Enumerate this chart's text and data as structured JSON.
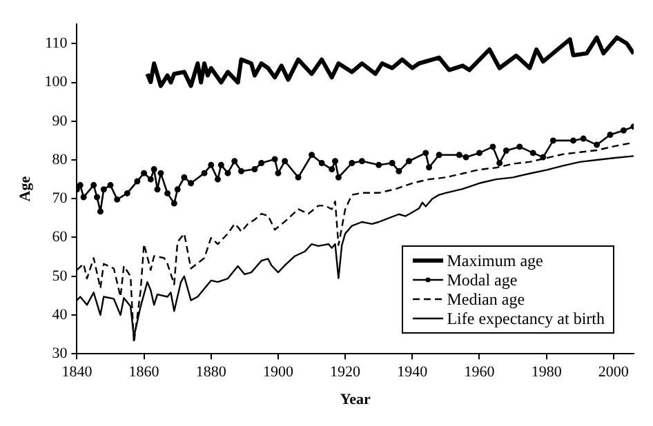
{
  "chart_data": {
    "type": "line",
    "xlabel": "Year",
    "ylabel": "Age",
    "xlim": [
      1840,
      2006
    ],
    "xticks": [
      1840,
      1860,
      1880,
      1900,
      1920,
      1940,
      1960,
      1980,
      2000
    ],
    "ylim": [
      30,
      115
    ],
    "yticks": [
      30,
      40,
      50,
      60,
      70,
      80,
      90,
      100,
      110
    ],
    "grid": false,
    "legend": "right",
    "series": [
      {
        "name": "Maximum age",
        "color": "#000000",
        "line_style": "solid",
        "marker": "none",
        "x": [
          1861,
          1862,
          1863,
          1865,
          1867,
          1868,
          1869,
          1872,
          1874,
          1876,
          1877,
          1878,
          1879,
          1880,
          1883,
          1885,
          1888,
          1889,
          1892,
          1893,
          1895,
          1897,
          1899,
          1901,
          1903,
          1906,
          1910,
          1913,
          1916,
          1918,
          1922,
          1925,
          1929,
          1931,
          1934,
          1937,
          1940,
          1942,
          1948,
          1951,
          1955,
          1957,
          1963,
          1966,
          1971,
          1975,
          1977,
          1979,
          1984,
          1987,
          1988,
          1992,
          1995,
          1997,
          2001,
          2004,
          2006
        ],
        "values": [
          102.2,
          100.1,
          104.9,
          99.1,
          101.8,
          100,
          102.2,
          102.7,
          99.1,
          104.9,
          100,
          104.9,
          101.8,
          103.7,
          100,
          102.7,
          100,
          105.9,
          104.9,
          101.8,
          104.9,
          103.7,
          101.3,
          104.3,
          100.7,
          105.9,
          102.2,
          105.9,
          101.3,
          104.9,
          102.7,
          104.9,
          102.2,
          104.9,
          103.7,
          105.9,
          103.7,
          104.9,
          106.4,
          103.2,
          104.3,
          103.2,
          108.5,
          103.7,
          106.9,
          103.7,
          108.5,
          105.4,
          109,
          111.1,
          107,
          107.5,
          111.6,
          107.5,
          111.6,
          110,
          107.4
        ]
      },
      {
        "name": "Modal age",
        "color": "#000000",
        "line_style": "solid",
        "marker": "circle",
        "x": [
          1840,
          1841,
          1842,
          1845,
          1846,
          1847,
          1848,
          1850,
          1852,
          1855,
          1858,
          1860,
          1862,
          1863,
          1864,
          1865,
          1867,
          1869,
          1870,
          1872,
          1874,
          1878,
          1880,
          1882,
          1883,
          1885,
          1887,
          1889,
          1893,
          1895,
          1899,
          1900,
          1902,
          1906,
          1910,
          1913,
          1916,
          1917,
          1918,
          1922,
          1925,
          1930,
          1934,
          1936,
          1939,
          1944,
          1945,
          1948,
          1954,
          1956,
          1960,
          1964,
          1966,
          1968,
          1972,
          1976,
          1979,
          1982,
          1988,
          1991,
          1995,
          1999,
          2003,
          2006
        ],
        "values": [
          72.4,
          73.5,
          70.4,
          73.5,
          70.4,
          66.7,
          72.4,
          73.5,
          69.8,
          71.4,
          74.5,
          76.6,
          75,
          77.6,
          72.4,
          76.6,
          71.4,
          68.8,
          72.4,
          75.5,
          74,
          76.6,
          78.7,
          75,
          78.7,
          76.6,
          79.7,
          77.1,
          77.6,
          79.2,
          80.2,
          76.6,
          79.7,
          75.5,
          81.3,
          79.2,
          77.6,
          79.7,
          75.5,
          79.2,
          79.7,
          78.7,
          79.2,
          77.1,
          79.7,
          81.8,
          78.1,
          81.3,
          81.3,
          80.7,
          81.8,
          83.4,
          79.2,
          82.4,
          83.4,
          81.8,
          80.7,
          85,
          85,
          85.5,
          83.9,
          86.5,
          87.6,
          88.6
        ]
      },
      {
        "name": "Median age",
        "color": "#000000",
        "line_style": "dashed",
        "marker": "none",
        "x": [
          1840,
          1842,
          1843,
          1845,
          1847,
          1848,
          1851,
          1853,
          1854,
          1856,
          1857,
          1859,
          1860,
          1862,
          1863,
          1866,
          1867,
          1869,
          1870,
          1872,
          1874,
          1878,
          1880,
          1882,
          1885,
          1887,
          1888,
          1889,
          1891,
          1893,
          1895,
          1897,
          1899,
          1902,
          1906,
          1909,
          1912,
          1914,
          1916,
          1917,
          1918,
          1920,
          1922,
          1925,
          1930,
          1935,
          1940,
          1945,
          1950,
          1955,
          1960,
          1965,
          1970,
          1975,
          1980,
          1985,
          1990,
          1995,
          2000,
          2006
        ],
        "values": [
          51.6,
          53.2,
          49.4,
          54.7,
          46.9,
          53.2,
          52,
          44.7,
          52.6,
          50,
          32.8,
          46.3,
          58.3,
          51.6,
          55.2,
          54.7,
          53.2,
          47.9,
          58.8,
          61,
          52,
          54.7,
          59.9,
          58.3,
          61,
          63.5,
          62.7,
          61.5,
          63.5,
          64.6,
          66.1,
          65.6,
          62,
          64.1,
          67.3,
          66.1,
          68.2,
          68.2,
          67.3,
          69.3,
          58,
          67.3,
          71,
          71.5,
          71.5,
          72.5,
          74,
          75,
          75.5,
          76.5,
          77.5,
          78,
          79,
          79.5,
          80.5,
          81.5,
          82,
          82.5,
          83.5,
          84.5
        ]
      },
      {
        "name": "Life expectancy at birth",
        "color": "#000000",
        "line_style": "solid",
        "marker": "none",
        "x": [
          1840,
          1841,
          1843,
          1845,
          1847,
          1848,
          1851,
          1853,
          1854,
          1856,
          1857,
          1859,
          1861,
          1862,
          1863,
          1864,
          1867,
          1868,
          1869,
          1871,
          1872,
          1874,
          1876,
          1880,
          1882,
          1885,
          1888,
          1890,
          1892,
          1895,
          1897,
          1898,
          1900,
          1902,
          1905,
          1908,
          1910,
          1912,
          1915,
          1916,
          1917,
          1918,
          1919,
          1920,
          1922,
          1925,
          1928,
          1930,
          1933,
          1936,
          1938,
          1940,
          1942,
          1943,
          1944,
          1946,
          1948,
          1950,
          1955,
          1960,
          1965,
          1970,
          1975,
          1980,
          1985,
          1990,
          1995,
          2000,
          2006
        ],
        "values": [
          43.8,
          44.7,
          42.6,
          45.8,
          40,
          44.7,
          44.2,
          40,
          44.4,
          42.2,
          34.4,
          42.2,
          48.5,
          46.4,
          42.6,
          45.3,
          44.7,
          45.8,
          41,
          48.5,
          50,
          43.8,
          44.7,
          48.9,
          48.5,
          49.4,
          52.6,
          50.5,
          51,
          54,
          54.5,
          52.8,
          51,
          52.8,
          55.2,
          56.4,
          58.3,
          57.8,
          58.3,
          57.3,
          58.3,
          49.5,
          58,
          61,
          63,
          64,
          63.5,
          64,
          65,
          66,
          65.5,
          66.5,
          67.5,
          69,
          68,
          70,
          71,
          71.5,
          72.5,
          74,
          75,
          75.5,
          76.5,
          77.4,
          78.5,
          79.5,
          80,
          80.5,
          81
        ]
      }
    ]
  }
}
